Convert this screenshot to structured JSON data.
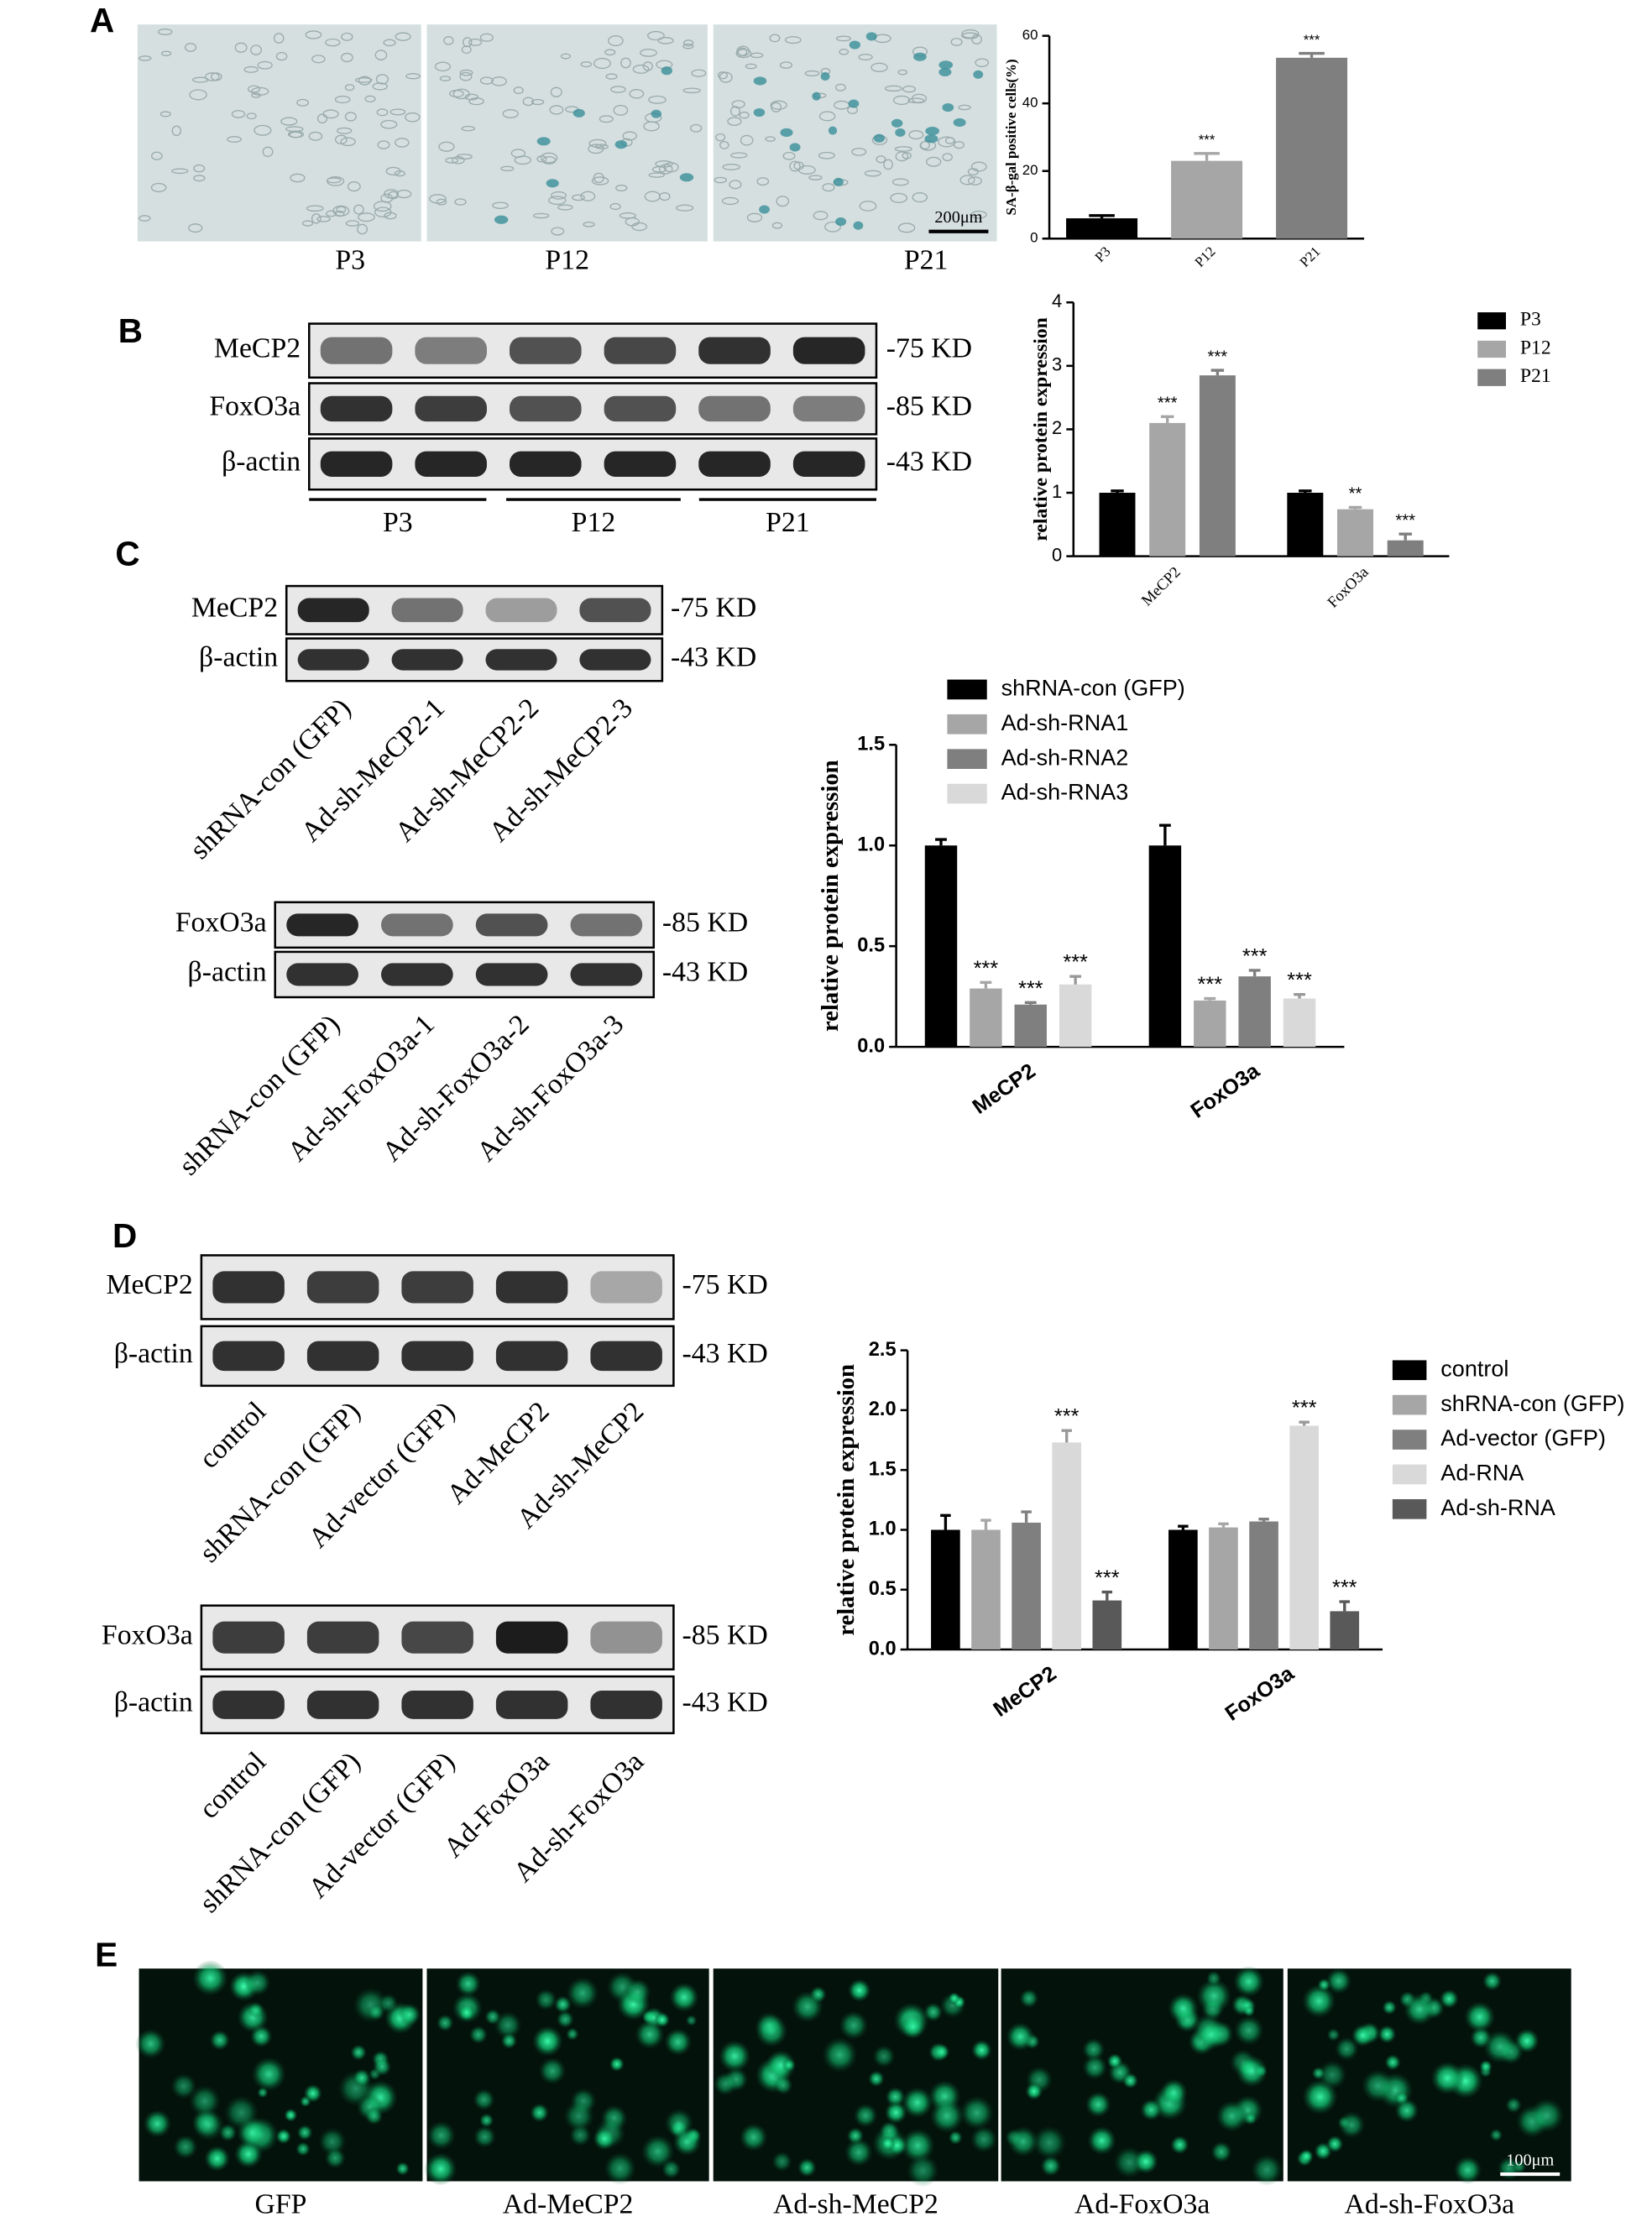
{
  "chart_data": [
    {
      "type": "bar",
      "y_label": "SA-β-gal positive cells(%)",
      "categories": [
        "P3",
        "P12",
        "P21"
      ],
      "values": [
        6,
        23,
        53.5
      ],
      "errors": [
        0.8,
        2.2,
        1.3
      ],
      "labels": [
        null,
        "***",
        "***"
      ],
      "colors": [
        "#000000",
        "#a6a6a6",
        "#7f7f7f"
      ],
      "ylim": [
        0,
        60
      ],
      "yticks": [
        0,
        20,
        40,
        60
      ]
    },
    {
      "type": "bar",
      "y_label": "relative protein expression",
      "categories": [
        "MeCP2",
        "FoxO3a"
      ],
      "series": [
        {
          "name": "P3",
          "color": "#000000",
          "values": [
            1,
            1
          ],
          "errors": [
            0.03,
            0.03
          ]
        },
        {
          "name": "P12",
          "color": "#a6a6a6",
          "values": [
            2.1,
            0.74
          ],
          "errors": [
            0.1,
            0.03
          ],
          "labels": [
            "***",
            "**"
          ]
        },
        {
          "name": "P21",
          "color": "#7f7f7f",
          "values": [
            2.85,
            0.25
          ],
          "errors": [
            0.08,
            0.1
          ],
          "labels": [
            "***",
            "***"
          ]
        }
      ],
      "ylim": [
        0,
        4
      ],
      "yticks": [
        0,
        1,
        2,
        3,
        4
      ]
    },
    {
      "type": "bar",
      "y_label": "relative protein expression",
      "categories": [
        "MeCP2",
        "FoxO3a"
      ],
      "series": [
        {
          "name": "shRNA-con (GFP)",
          "color": "#000000",
          "values": [
            1,
            1
          ],
          "errors": [
            0.03,
            0.1
          ]
        },
        {
          "name": "Ad-sh-RNA1",
          "color": "#a6a6a6",
          "values": [
            0.29,
            0.23
          ],
          "errors": [
            0.03,
            0.01
          ],
          "labels": [
            "***",
            "***"
          ]
        },
        {
          "name": "Ad-sh-RNA2",
          "color": "#7f7f7f",
          "values": [
            0.21,
            0.35
          ],
          "errors": [
            0.01,
            0.03
          ],
          "labels": [
            "***",
            "***"
          ]
        },
        {
          "name": "Ad-sh-RNA3",
          "color": "#d9d9d9",
          "values": [
            0.31,
            0.24
          ],
          "errors": [
            0.04,
            0.02
          ],
          "labels": [
            "***",
            "***"
          ]
        }
      ],
      "ylim": [
        0,
        1.5
      ],
      "yticks": [
        {
          "value": 0,
          "label": "0.0"
        },
        {
          "value": 0.5,
          "label": "0.5"
        },
        {
          "value": 1,
          "label": "1.0"
        },
        {
          "value": 1.5,
          "label": "1.5"
        }
      ]
    },
    {
      "type": "bar",
      "y_label": "relative protein expression",
      "categories": [
        "MeCP2",
        "FoxO3a"
      ],
      "series": [
        {
          "name": "control",
          "color": "#000000",
          "values": [
            1,
            1
          ],
          "errors": [
            0.12,
            0.03
          ]
        },
        {
          "name": "shRNA-con (GFP)",
          "color": "#a6a6a6",
          "values": [
            1,
            1.02
          ],
          "errors": [
            0.08,
            0.03
          ]
        },
        {
          "name": "Ad-vector (GFP)",
          "color": "#7f7f7f",
          "values": [
            1.06,
            1.07
          ],
          "errors": [
            0.09,
            0.02
          ]
        },
        {
          "name": "Ad-RNA",
          "color": "#d9d9d9",
          "values": [
            1.73,
            1.87
          ],
          "errors": [
            0.1,
            0.03
          ],
          "labels": [
            "***",
            "***"
          ]
        },
        {
          "name": "Ad-sh-RNA",
          "color": "#595959",
          "values": [
            0.41,
            0.32
          ],
          "errors": [
            0.07,
            0.08
          ],
          "labels": [
            "***",
            "***"
          ]
        }
      ],
      "ylim": [
        0,
        2.5
      ],
      "yticks": [
        {
          "value": 0,
          "label": "0.0"
        },
        {
          "value": 0.5,
          "label": "0.5"
        },
        {
          "value": 1,
          "label": "1.0"
        },
        {
          "value": 1.5,
          "label": "1.5"
        },
        {
          "value": 2,
          "label": "2.0"
        },
        {
          "value": 2.5,
          "label": "2.5"
        }
      ]
    }
  ],
  "panels": {
    "A": {
      "letter": "A",
      "images": [
        "P3",
        "P12",
        "P21"
      ],
      "scale_bar": "200μm"
    },
    "B": {
      "letter": "B",
      "blot_rows": [
        {
          "protein": "MeCP2",
          "size": "-75 KD"
        },
        {
          "protein": "FoxO3a",
          "size": "-85 KD"
        },
        {
          "protein": "β-actin",
          "size": "-43 KD"
        }
      ],
      "groups": [
        "P3",
        "P12",
        "P21"
      ]
    },
    "C": {
      "letter": "C",
      "blots": [
        {
          "rows": [
            {
              "protein": "MeCP2",
              "size": "-75 KD"
            },
            {
              "protein": "β-actin",
              "size": "-43 KD"
            }
          ],
          "lanes": [
            "shRNA-con (GFP)",
            "Ad-sh-MeCP2-1",
            "Ad-sh-MeCP2-2",
            "Ad-sh-MeCP2-3"
          ]
        },
        {
          "rows": [
            {
              "protein": "FoxO3a",
              "size": "-85 KD"
            },
            {
              "protein": "β-actin",
              "size": "-43 KD"
            }
          ],
          "lanes": [
            "shRNA-con (GFP)",
            "Ad-sh-FoxO3a-1",
            "Ad-sh-FoxO3a-2",
            "Ad-sh-FoxO3a-3"
          ]
        }
      ]
    },
    "D": {
      "letter": "D",
      "blots": [
        {
          "rows": [
            {
              "protein": "MeCP2",
              "size": "-75 KD"
            },
            {
              "protein": "β-actin",
              "size": "-43 KD"
            }
          ],
          "lanes": [
            "control",
            "shRNA-con (GFP)",
            "Ad-vector (GFP)",
            "Ad-MeCP2",
            "Ad-sh-MeCP2"
          ]
        },
        {
          "rows": [
            {
              "protein": "FoxO3a",
              "size": "-85 KD"
            },
            {
              "protein": "β-actin",
              "size": "-43 KD"
            }
          ],
          "lanes": [
            "control",
            "shRNA-con (GFP)",
            "Ad-vector (GFP)",
            "Ad-FoxO3a",
            "Ad-sh-FoxO3a"
          ]
        }
      ]
    },
    "E": {
      "letter": "E",
      "images": [
        "GFP",
        "Ad-MeCP2",
        "Ad-sh-MeCP2",
        "Ad-FoxO3a",
        "Ad-sh-FoxO3a"
      ],
      "scale_bar": "100μm"
    }
  }
}
